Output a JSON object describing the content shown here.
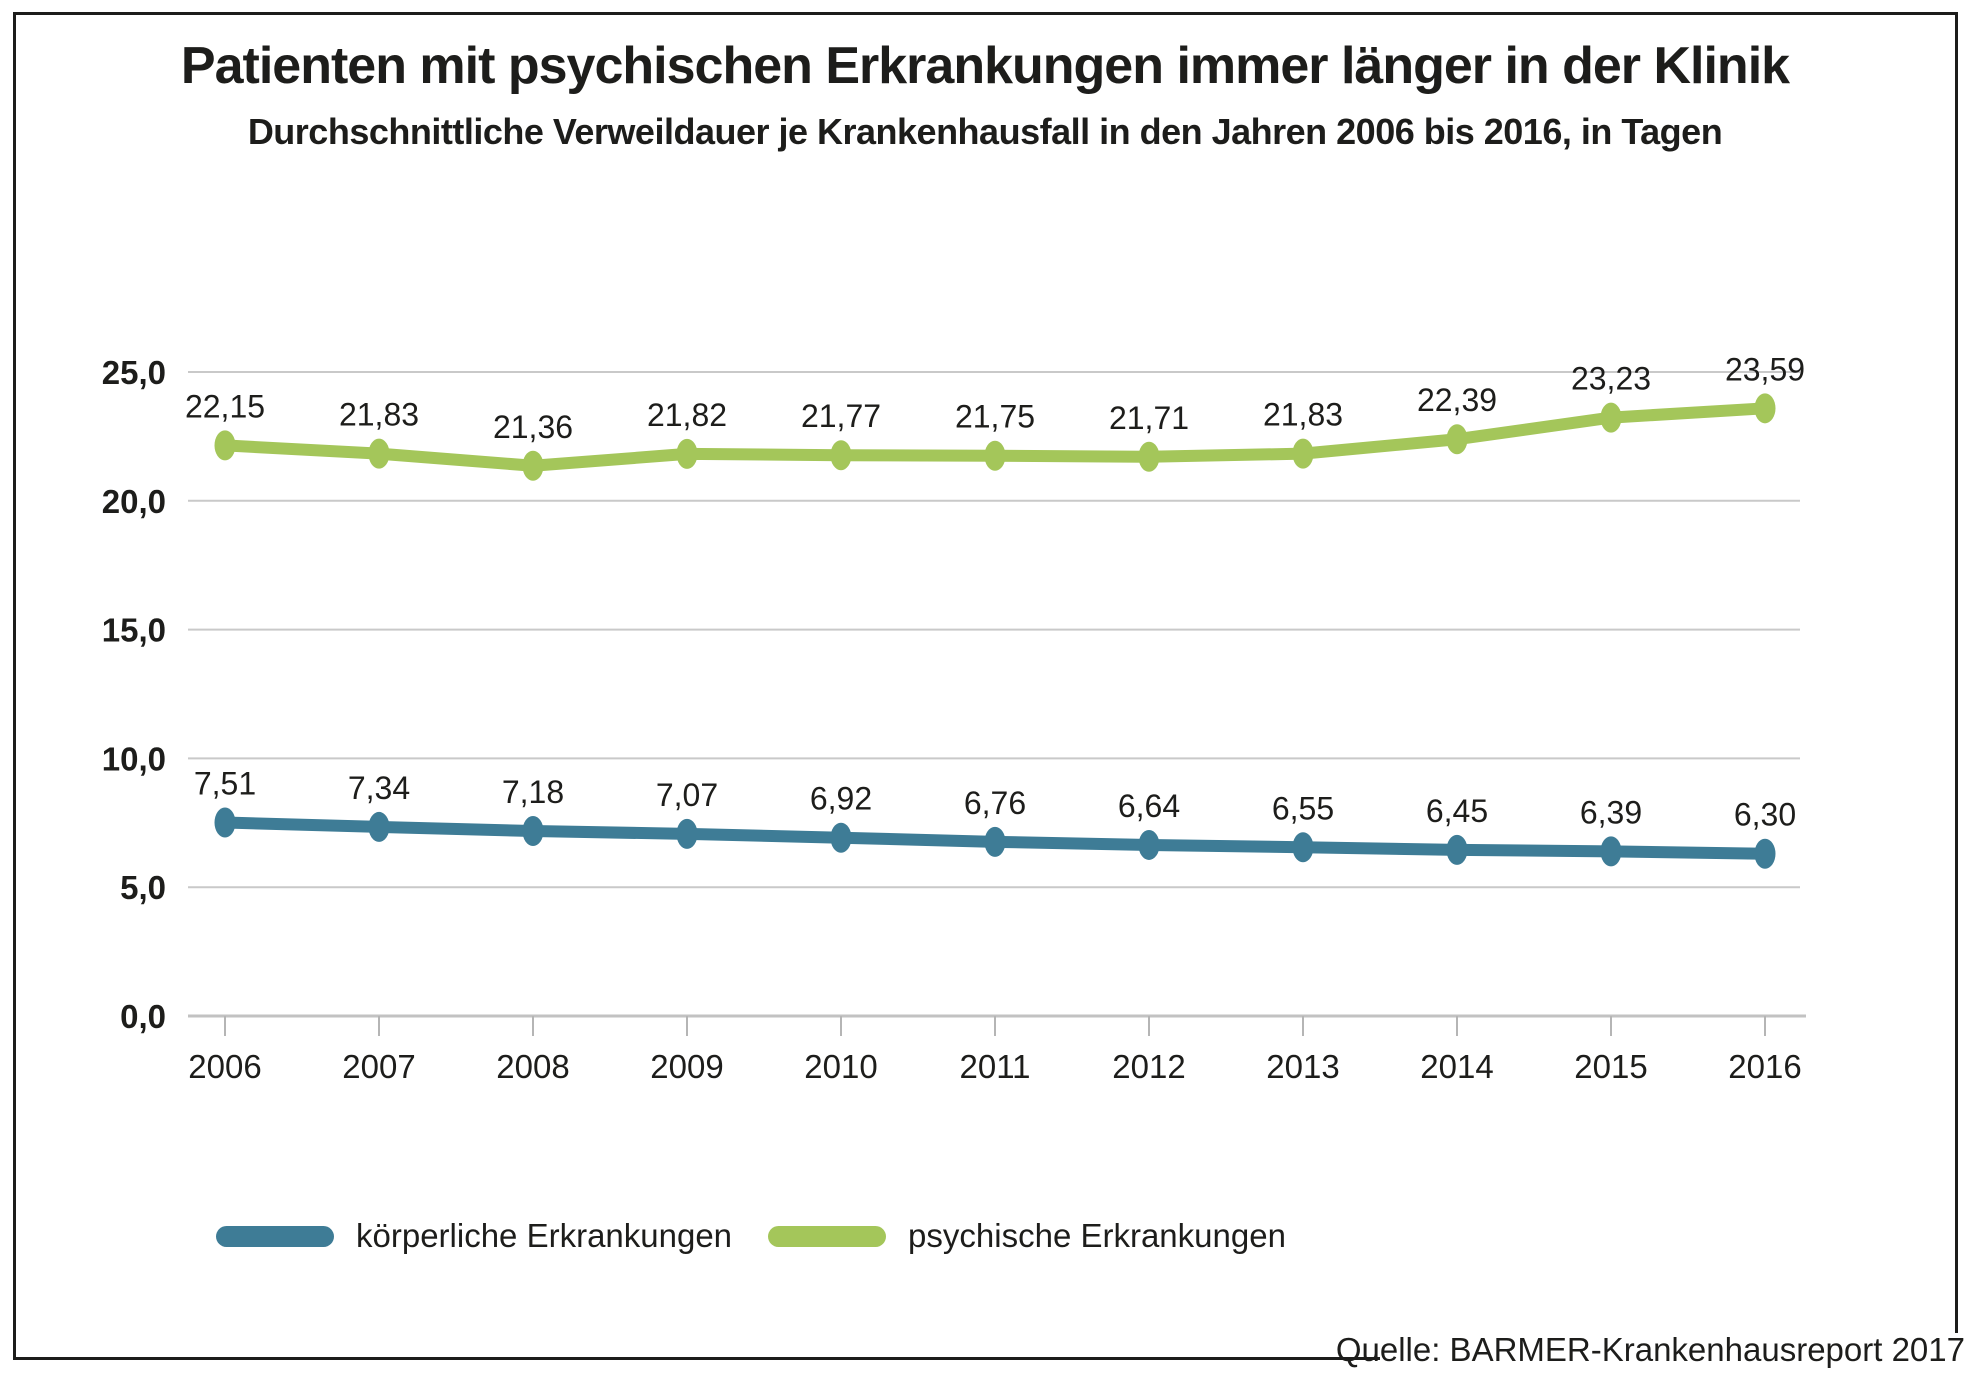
{
  "title": "Patienten mit psychischen Erkrankungen immer länger in der Klinik",
  "subtitle": "Durchschnittliche Verweildauer je Krankenhausfall in den Jahren 2006 bis 2016, in Tagen",
  "source": "Quelle: BARMER-Krankenhausreport 2017",
  "colors": {
    "accent_blue": "#3e7c96",
    "accent_green": "#a4c65a",
    "grid": "#c9c9c9",
    "axis": "#c2c2c2",
    "tick": "#b5b5b5",
    "text": "#1d1d1b",
    "frame": "#1d1d1b"
  },
  "legend": {
    "items": [
      {
        "label": "körperliche Erkrankungen",
        "color": "#3e7c96"
      },
      {
        "label": "psychische Erkrankungen",
        "color": "#a4c65a"
      }
    ]
  },
  "chart_data": {
    "type": "line",
    "title": "Patienten mit psychischen Erkrankungen immer länger in der Klinik",
    "subtitle": "Durchschnittliche Verweildauer je Krankenhausfall in den Jahren 2006 bis 2016, in Tagen",
    "categories": [
      "2006",
      "2007",
      "2008",
      "2009",
      "2010",
      "2011",
      "2012",
      "2013",
      "2014",
      "2015",
      "2016"
    ],
    "series": [
      {
        "name": "körperliche Erkrankungen",
        "color": "#3e7c96",
        "values": [
          7.51,
          7.34,
          7.18,
          7.07,
          6.92,
          6.76,
          6.64,
          6.55,
          6.45,
          6.39,
          6.3
        ],
        "value_labels": [
          "7,51",
          "7,34",
          "7,18",
          "7,07",
          "6,92",
          "6,76",
          "6,64",
          "6,55",
          "6,45",
          "6,39",
          "6,30"
        ]
      },
      {
        "name": "psychische Erkrankungen",
        "color": "#a4c65a",
        "values": [
          22.15,
          21.83,
          21.36,
          21.82,
          21.77,
          21.75,
          21.71,
          21.83,
          22.39,
          23.23,
          23.59
        ],
        "value_labels": [
          "22,15",
          "21,83",
          "21,36",
          "21,82",
          "21,77",
          "21,75",
          "21,71",
          "21,83",
          "22,39",
          "23,23",
          "23,59"
        ]
      }
    ],
    "ylim": [
      0,
      25
    ],
    "yticks": [
      {
        "value": 0,
        "label": "0,0"
      },
      {
        "value": 5,
        "label": "5,0"
      },
      {
        "value": 10,
        "label": "10,0"
      },
      {
        "value": 15,
        "label": "15,0"
      },
      {
        "value": 20,
        "label": "20,0"
      },
      {
        "value": 25,
        "label": "25,0"
      }
    ],
    "grid": true,
    "legend_position": "bottom"
  }
}
